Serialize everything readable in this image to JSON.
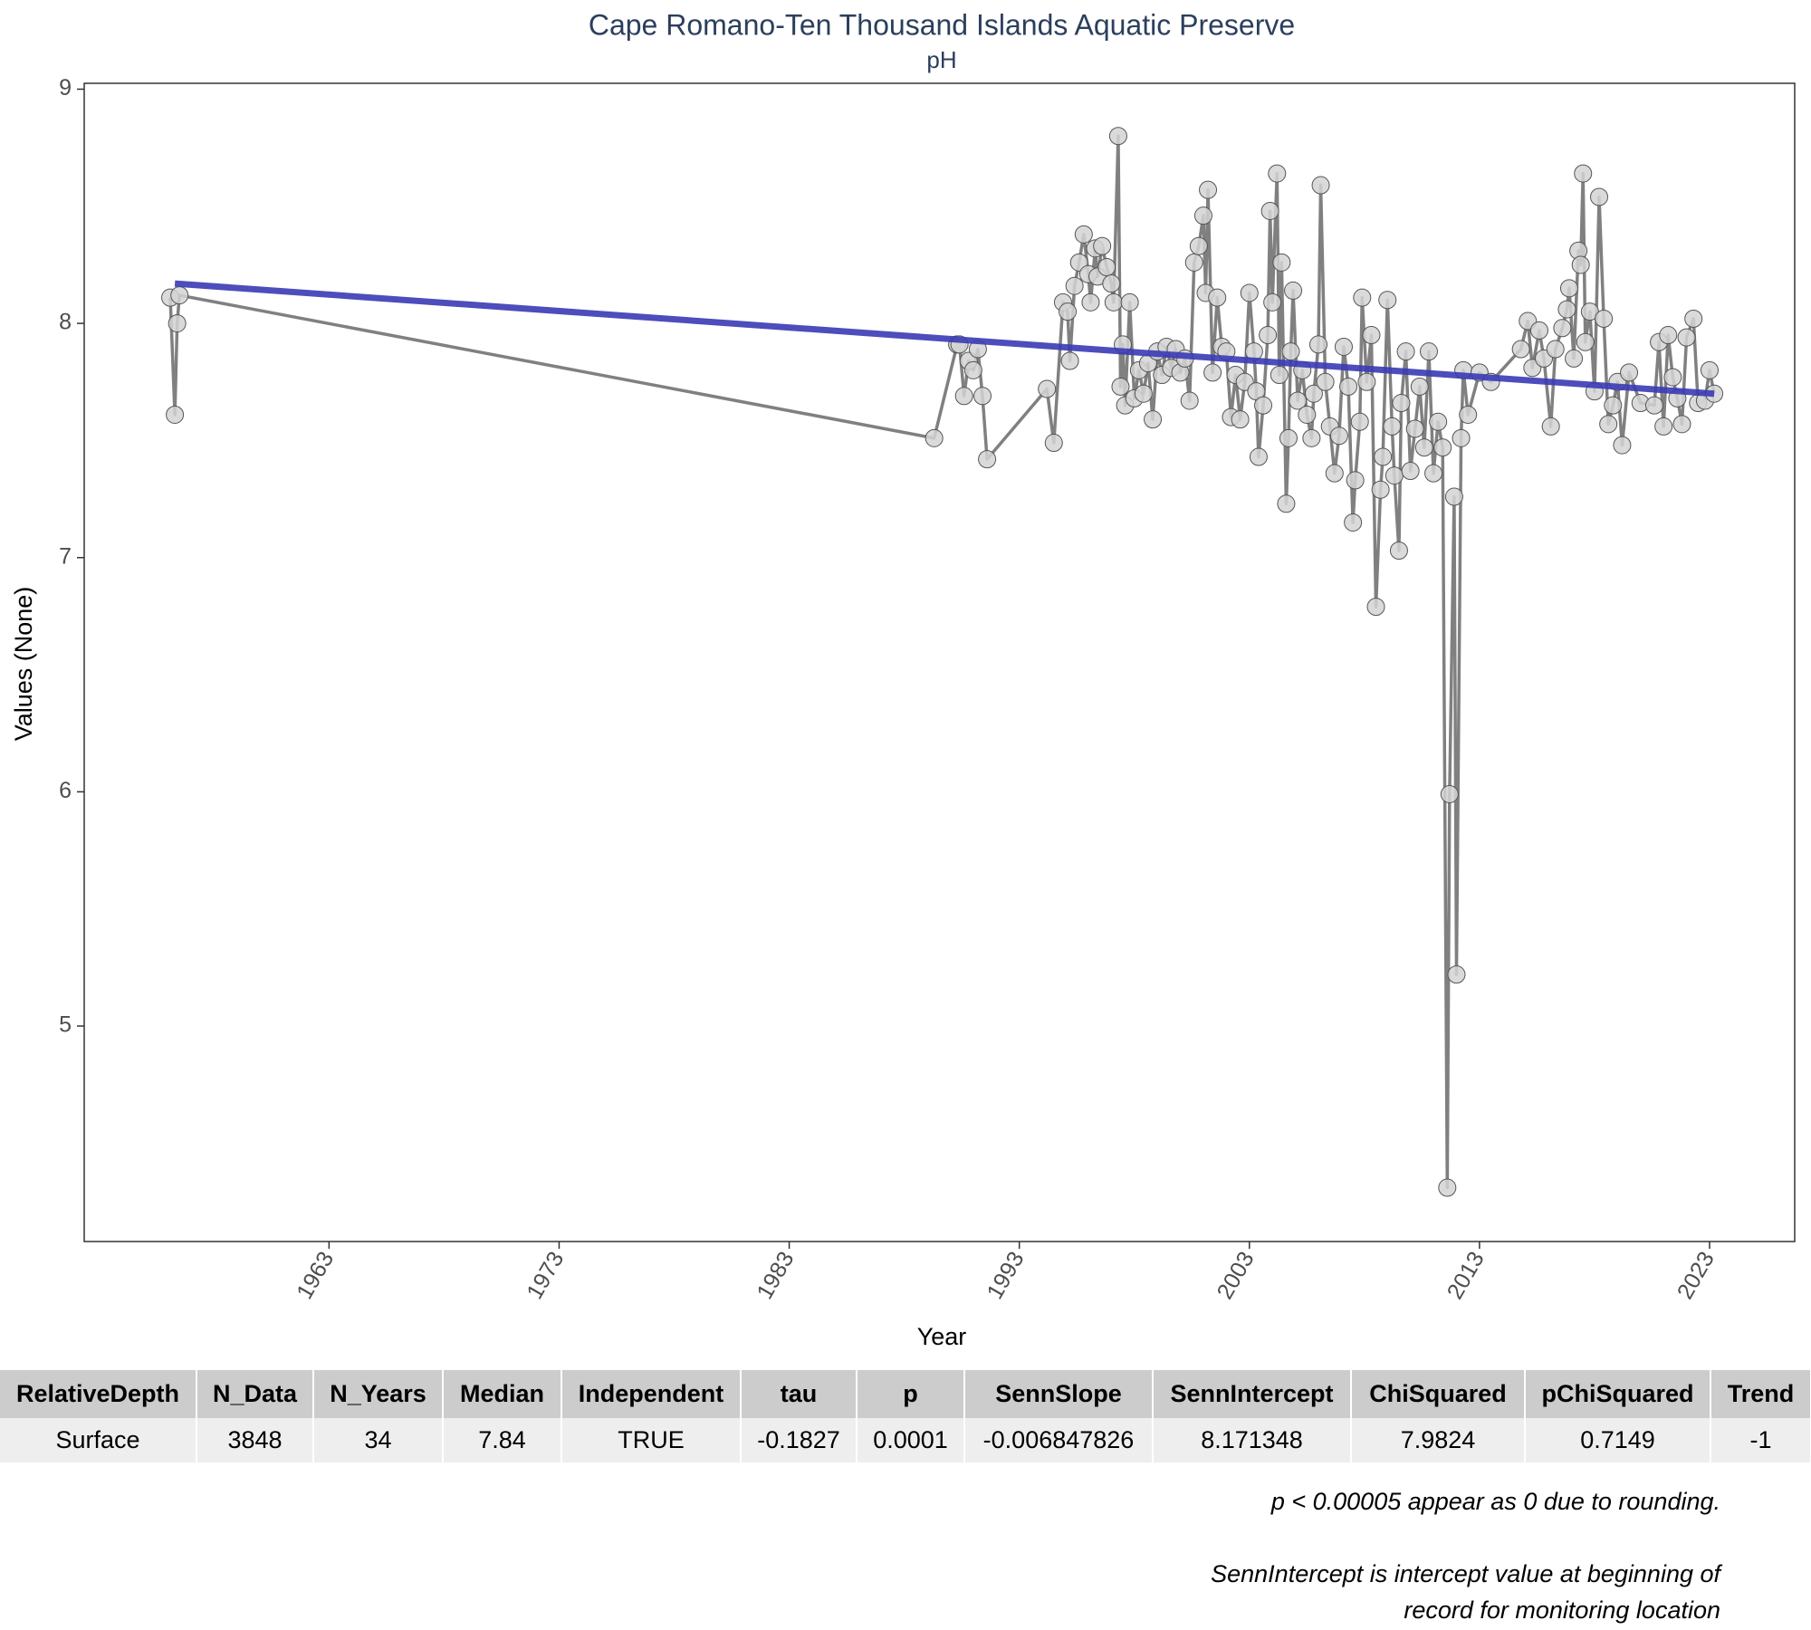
{
  "chart_data": {
    "type": "line",
    "title": "Cape Romano-Ten Thousand Islands Aquatic Preserve",
    "subtitle": "pH",
    "x_label": "Year",
    "y_label": "Values (None)",
    "color": "#808080",
    "x": [
      1956.1,
      1956.3,
      1956.4,
      1956.5,
      1989.3,
      1990.3,
      1990.4,
      1990.6,
      1990.8,
      1991.0,
      1991.2,
      1991.4,
      1991.6,
      1994.2,
      1994.5,
      1994.9,
      1995.1,
      1995.2,
      1995.4,
      1995.6,
      1995.8,
      1996.0,
      1996.1,
      1996.3,
      1996.4,
      1996.6,
      1996.8,
      1997.0,
      1997.1,
      1997.3,
      1997.4,
      1997.5,
      1997.6,
      1997.8,
      1998.0,
      1998.2,
      1998.4,
      1998.6,
      1998.8,
      1999.0,
      1999.2,
      1999.4,
      1999.6,
      1999.8,
      2000.0,
      2000.2,
      2000.4,
      2000.6,
      2000.8,
      2001.0,
      2001.1,
      2001.2,
      2001.4,
      2001.6,
      2001.8,
      2002.0,
      2002.2,
      2002.4,
      2002.6,
      2002.8,
      2003.0,
      2003.2,
      2003.3,
      2003.4,
      2003.6,
      2003.8,
      2003.9,
      2004.0,
      2004.2,
      2004.3,
      2004.4,
      2004.6,
      2004.7,
      2004.8,
      2004.9,
      2005.1,
      2005.3,
      2005.5,
      2005.7,
      2005.8,
      2006.0,
      2006.1,
      2006.3,
      2006.5,
      2006.7,
      2006.9,
      2007.1,
      2007.3,
      2007.5,
      2007.6,
      2007.8,
      2007.9,
      2008.1,
      2008.3,
      2008.5,
      2008.7,
      2008.8,
      2009.0,
      2009.2,
      2009.3,
      2009.5,
      2009.6,
      2009.8,
      2010.0,
      2010.2,
      2010.4,
      2010.6,
      2010.8,
      2011.0,
      2011.2,
      2011.4,
      2011.6,
      2011.7,
      2011.9,
      2012.0,
      2012.2,
      2012.3,
      2012.5,
      2013.0,
      2013.5,
      2014.8,
      2015.1,
      2015.3,
      2015.6,
      2015.8,
      2016.1,
      2016.3,
      2016.6,
      2016.8,
      2016.9,
      2017.1,
      2017.3,
      2017.4,
      2017.5,
      2017.6,
      2017.8,
      2018.0,
      2018.2,
      2018.4,
      2018.6,
      2018.8,
      2019.0,
      2019.2,
      2019.5,
      2020.0,
      2020.6,
      2020.8,
      2021.0,
      2021.2,
      2021.4,
      2021.6,
      2021.8,
      2022.0,
      2022.3,
      2022.5,
      2022.8,
      2023.0,
      2023.2
    ],
    "values": [
      8.11,
      7.61,
      8.0,
      8.12,
      7.51,
      7.91,
      7.91,
      7.69,
      7.84,
      7.8,
      7.89,
      7.69,
      7.42,
      7.72,
      7.49,
      8.09,
      8.05,
      7.84,
      8.16,
      8.26,
      8.38,
      8.21,
      8.09,
      8.32,
      8.2,
      8.33,
      8.24,
      8.17,
      8.09,
      8.8,
      7.73,
      7.91,
      7.65,
      8.09,
      7.68,
      7.8,
      7.7,
      7.83,
      7.59,
      7.88,
      7.78,
      7.9,
      7.81,
      7.89,
      7.79,
      7.85,
      7.67,
      8.26,
      8.33,
      8.46,
      8.13,
      8.57,
      7.79,
      8.11,
      7.9,
      7.88,
      7.6,
      7.78,
      7.59,
      7.75,
      8.13,
      7.88,
      7.71,
      7.43,
      7.65,
      7.95,
      8.48,
      8.09,
      8.64,
      7.78,
      8.26,
      7.23,
      7.51,
      7.88,
      8.14,
      7.67,
      7.8,
      7.61,
      7.51,
      7.7,
      7.91,
      8.59,
      7.75,
      7.56,
      7.36,
      7.52,
      7.9,
      7.73,
      7.15,
      7.33,
      7.58,
      8.11,
      7.75,
      7.95,
      6.79,
      7.29,
      7.43,
      8.1,
      7.56,
      7.35,
      7.03,
      7.66,
      7.88,
      7.37,
      7.55,
      7.73,
      7.47,
      7.88,
      7.36,
      7.58,
      7.47,
      4.31,
      5.99,
      7.26,
      5.22,
      7.51,
      7.8,
      7.61,
      7.79,
      7.75,
      7.89,
      8.01,
      7.81,
      7.97,
      7.85,
      7.56,
      7.89,
      7.98,
      8.06,
      8.15,
      7.85,
      8.31,
      8.25,
      8.64,
      7.92,
      8.05,
      7.71,
      8.54,
      8.02,
      7.57,
      7.65,
      7.75,
      7.48,
      7.79,
      7.66,
      7.65,
      7.92,
      7.56,
      7.95,
      7.77,
      7.68,
      7.57,
      7.94,
      8.02,
      7.66,
      7.67,
      7.8,
      7.7
    ],
    "trend_line": {
      "x": [
        1956.3,
        2023.2
      ],
      "values": [
        8.17,
        7.7
      ],
      "color": "#3a3ab5"
    },
    "xlim": [
      1952.36,
      2026.7
    ],
    "xticks": [
      1963,
      1973,
      1983,
      1993,
      2003,
      2013,
      2023
    ],
    "ylim": [
      4.08,
      9.025
    ],
    "yticks": [
      5,
      6,
      7,
      8,
      9
    ],
    "grid": false
  },
  "table": {
    "columns": [
      "RelativeDepth",
      "N_Data",
      "N_Years",
      "Median",
      "Independent",
      "tau",
      "p",
      "SennSlope",
      "SennIntercept",
      "ChiSquared",
      "pChiSquared",
      "Trend"
    ],
    "rows": [
      [
        "Surface",
        "3848",
        "34",
        "7.84",
        "TRUE",
        "-0.1827",
        "0.0001",
        "-0.006847826",
        "8.171348",
        "7.9824",
        "0.7149",
        "-1"
      ]
    ]
  },
  "notes": [
    "p < 0.00005 appear as 0 due to rounding.",
    "SennIntercept is intercept value at beginning of record for monitoring location"
  ]
}
